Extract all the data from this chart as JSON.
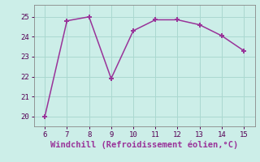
{
  "x": [
    6,
    7,
    8,
    9,
    10,
    11,
    12,
    13,
    14,
    15
  ],
  "y": [
    20.0,
    24.8,
    25.0,
    21.9,
    24.3,
    24.85,
    24.85,
    24.6,
    24.05,
    23.3
  ],
  "line_color": "#993399",
  "marker": "+",
  "marker_size": 5,
  "marker_color": "#993399",
  "background_color": "#cceee8",
  "grid_color": "#aad8d0",
  "xlabel": "Windchill (Refroidissement éolien,°C)",
  "xlabel_color": "#993399",
  "xlabel_fontsize": 7.5,
  "xlim": [
    5.5,
    15.5
  ],
  "ylim": [
    19.5,
    25.6
  ],
  "xticks": [
    6,
    7,
    8,
    9,
    10,
    11,
    12,
    13,
    14,
    15
  ],
  "yticks": [
    20,
    21,
    22,
    23,
    24,
    25
  ],
  "tick_fontsize": 6.5,
  "linewidth": 1.1
}
